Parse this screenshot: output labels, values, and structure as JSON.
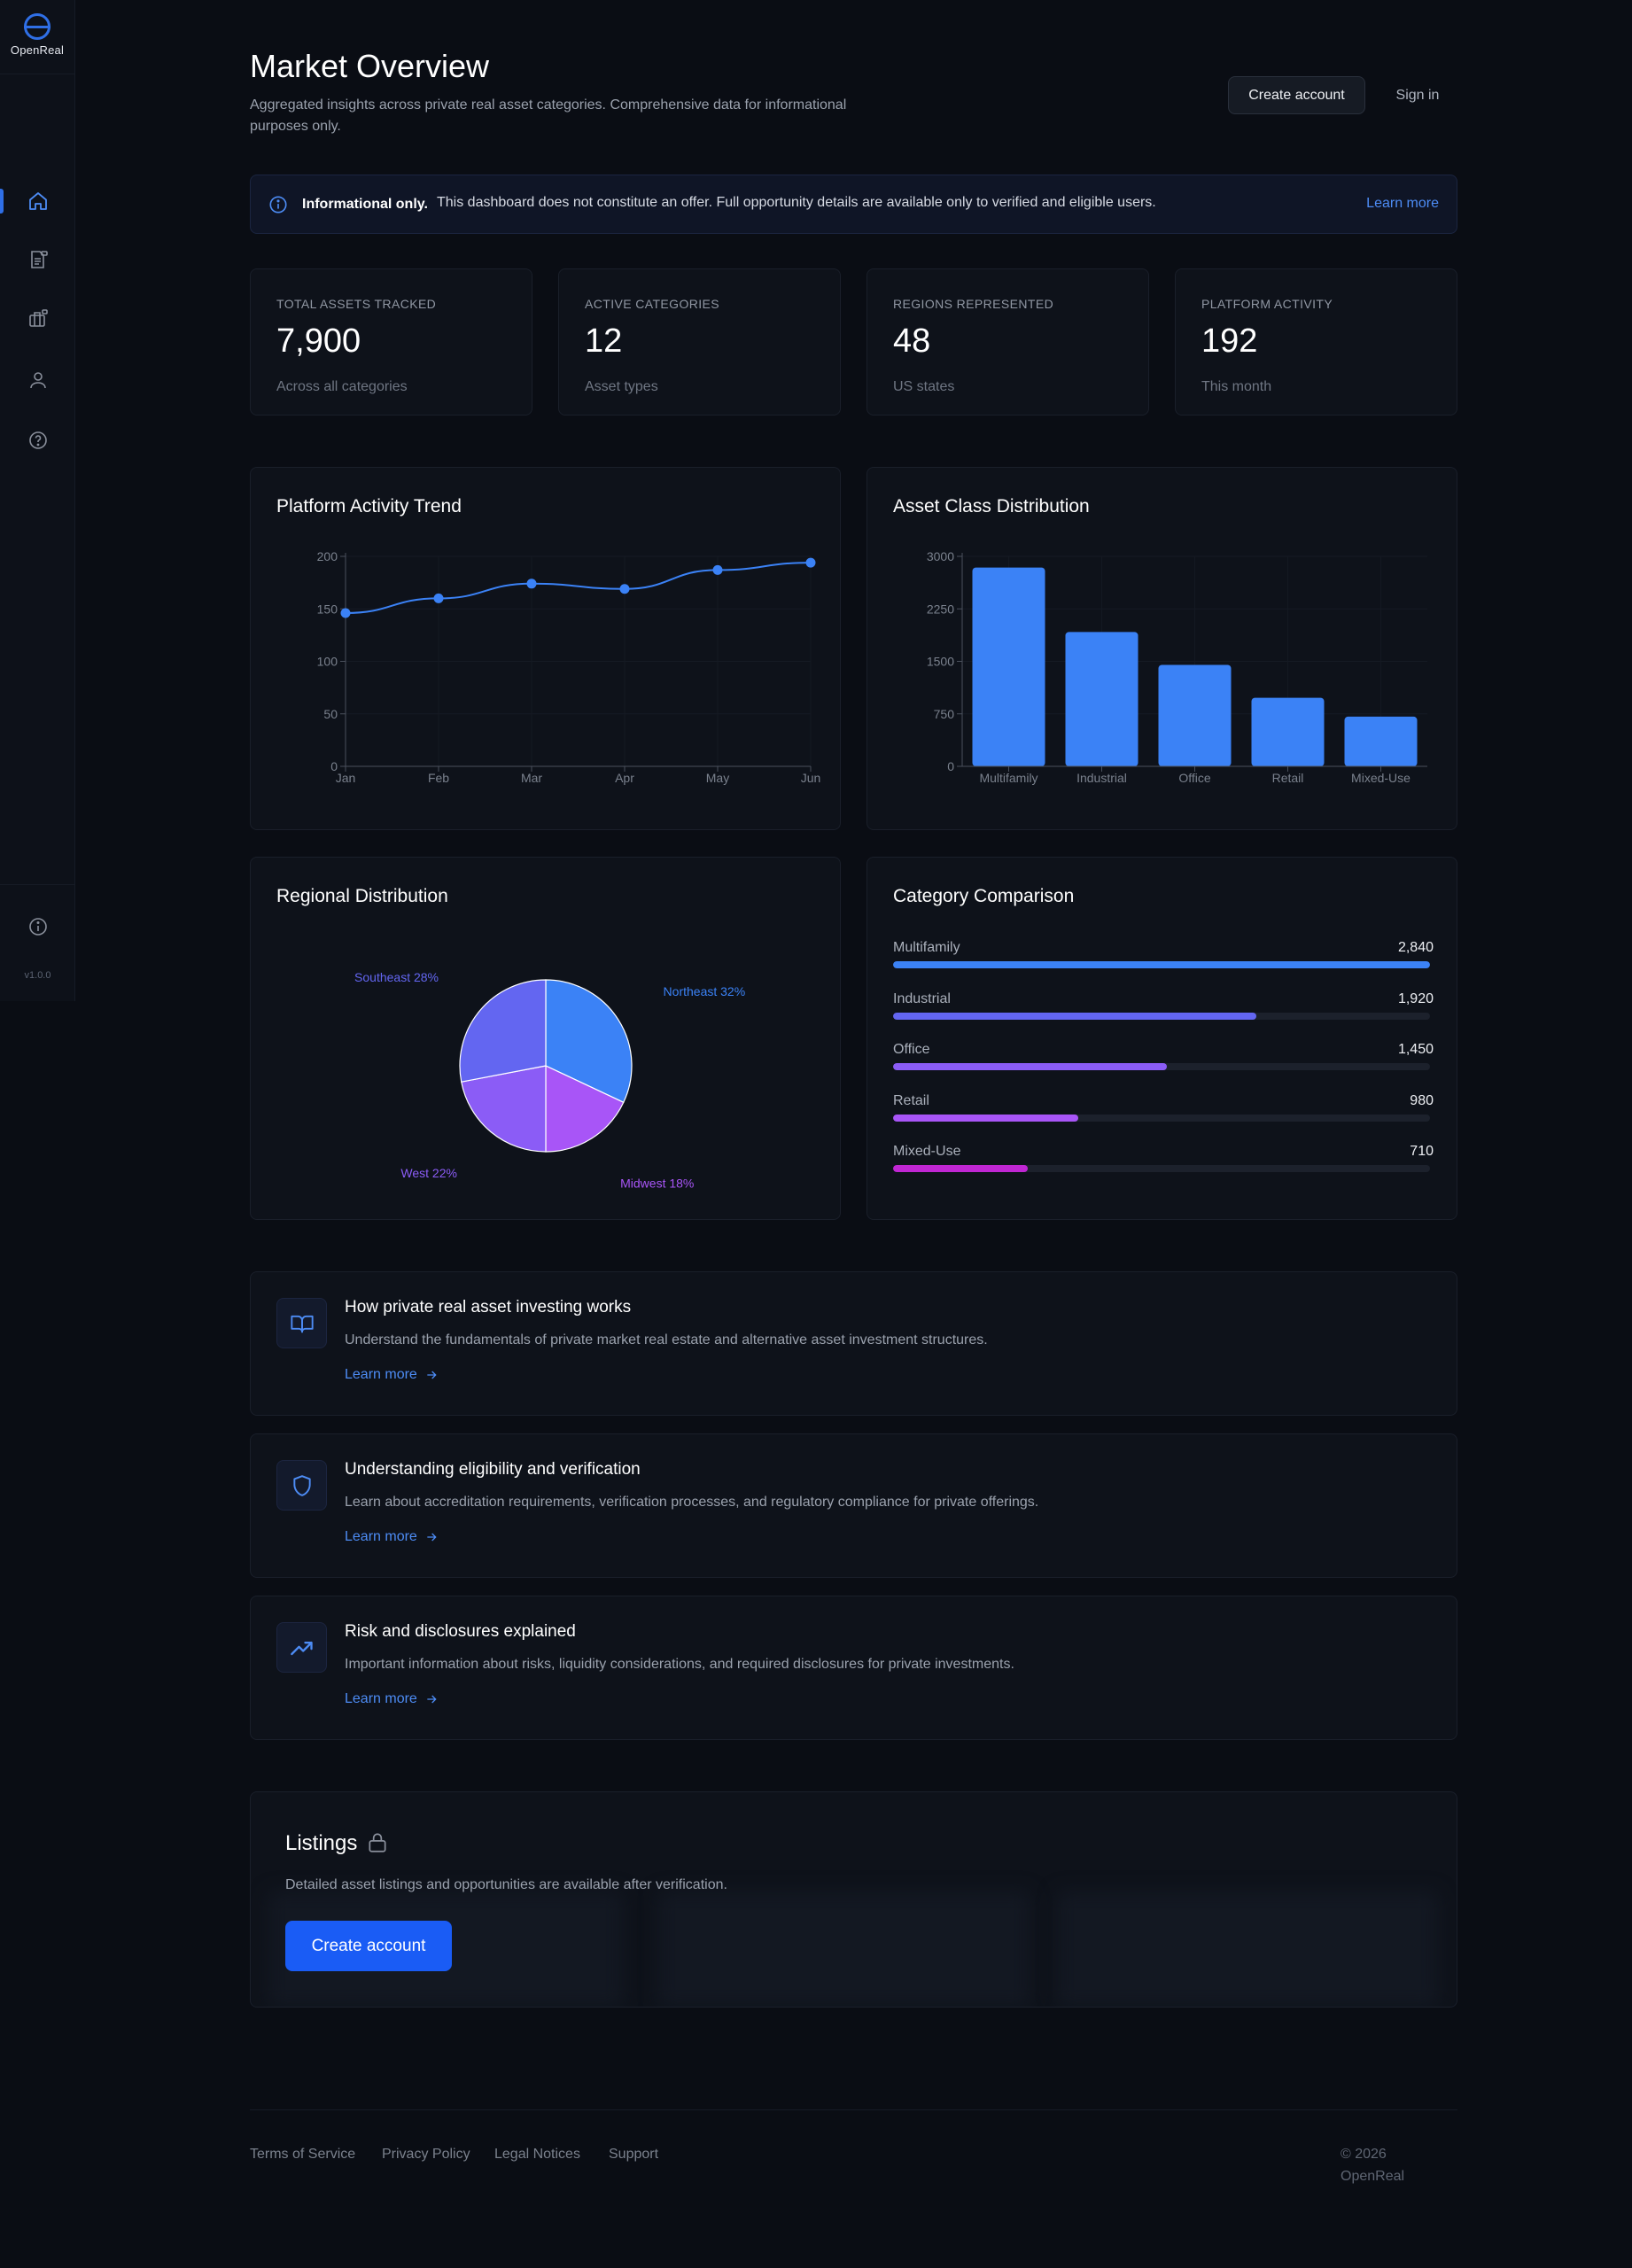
{
  "app": {
    "logo_text": "OpenReal",
    "version": "v1.0.0"
  },
  "sidebar": {
    "items": [
      {
        "icon": "home-icon",
        "active": true
      },
      {
        "icon": "document-lock-icon",
        "active": false
      },
      {
        "icon": "briefcase-lock-icon",
        "active": false
      },
      {
        "icon": "user-icon",
        "active": false
      },
      {
        "icon": "help-icon",
        "active": false
      }
    ],
    "bottom_icon": "info-icon"
  },
  "header": {
    "title": "Market Overview",
    "subtitle": "Aggregated insights across private real asset categories. Comprehensive data for informational purposes only.",
    "create_account": "Create account",
    "sign_in": "Sign in"
  },
  "banner": {
    "bold": "Informational only.",
    "text": "This dashboard does not constitute an offer. Full opportunity details are available only to verified and eligible users.",
    "link": "Learn more"
  },
  "stats": [
    {
      "label": "TOTAL ASSETS TRACKED",
      "value": "7,900",
      "note": "Across all categories"
    },
    {
      "label": "ACTIVE CATEGORIES",
      "value": "12",
      "note": "Asset types"
    },
    {
      "label": "REGIONS REPRESENTED",
      "value": "48",
      "note": "US states"
    },
    {
      "label": "PLATFORM ACTIVITY",
      "value": "192",
      "note": "This month"
    }
  ],
  "colors": {
    "accent": "#3b82f6",
    "indigo": "#6366f1",
    "violet": "#8b5cf6",
    "purple": "#a855f7",
    "magenta": "#c026d3"
  },
  "chart_data": [
    {
      "type": "line",
      "title": "Platform Activity Trend",
      "x": [
        "Jan",
        "Feb",
        "Mar",
        "Apr",
        "May",
        "Jun"
      ],
      "values": [
        146,
        160,
        174,
        169,
        187,
        194
      ],
      "ylim": [
        0,
        200
      ],
      "yticks": [
        0,
        50,
        100,
        150,
        200
      ],
      "xlabel": "",
      "ylabel": ""
    },
    {
      "type": "bar",
      "title": "Asset Class Distribution",
      "categories": [
        "Multifamily",
        "Industrial",
        "Office",
        "Retail",
        "Mixed-Use"
      ],
      "values": [
        2840,
        1920,
        1450,
        980,
        710
      ],
      "ylim": [
        0,
        3000
      ],
      "yticks": [
        0,
        750,
        1500,
        2250,
        3000
      ],
      "xlabel": "",
      "ylabel": ""
    },
    {
      "type": "pie",
      "title": "Regional Distribution",
      "labels": [
        "Northeast 32%",
        "Midwest 18%",
        "West 22%",
        "Southeast 28%"
      ],
      "values": [
        32,
        18,
        22,
        28
      ],
      "colors": [
        "#3b82f6",
        "#a855f7",
        "#8b5cf6",
        "#6366f1"
      ]
    },
    {
      "type": "bar",
      "title": "Category Comparison",
      "categories": [
        "Multifamily",
        "Industrial",
        "Office",
        "Retail",
        "Mixed-Use"
      ],
      "labels": [
        "2,840",
        "1,920",
        "1,450",
        "980",
        "710"
      ],
      "values": [
        2840,
        1920,
        1450,
        980,
        710
      ],
      "colors": [
        "#3b82f6",
        "#6366f1",
        "#8b5cf6",
        "#a855f7",
        "#c026d3"
      ]
    }
  ],
  "resources": [
    {
      "icon": "book-open-icon",
      "title": "How private real asset investing works",
      "desc": "Understand the fundamentals of private market real estate and alternative asset investment structures.",
      "link": "Learn more"
    },
    {
      "icon": "shield-icon",
      "title": "Understanding eligibility and verification",
      "desc": "Learn about accreditation requirements, verification processes, and regulatory compliance for private offerings.",
      "link": "Learn more"
    },
    {
      "icon": "trending-up-icon",
      "title": "Risk and disclosures explained",
      "desc": "Important information about risks, liquidity considerations, and required disclosures for private investments.",
      "link": "Learn more"
    }
  ],
  "listings": {
    "title": "Listings",
    "desc": "Detailed asset listings and opportunities are available after verification.",
    "button": "Create account"
  },
  "footer": {
    "links": [
      "Terms of Service",
      "Privacy Policy",
      "Legal Notices",
      "Support"
    ],
    "copyright": "© 2026 OpenReal"
  }
}
